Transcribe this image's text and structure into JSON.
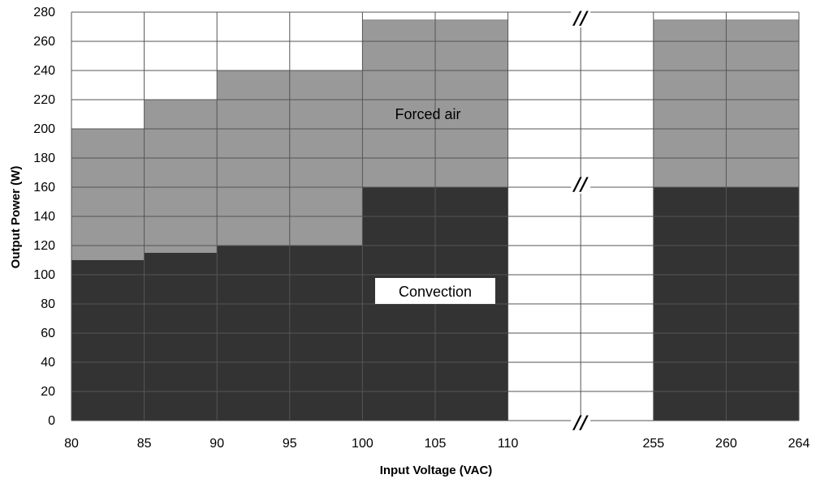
{
  "chart_data": {
    "type": "area",
    "xlabel": "Input Voltage (VAC)",
    "ylabel": "Output Power (W)",
    "ylim": [
      0,
      280
    ],
    "y_ticks": [
      "0",
      "20",
      "40",
      "60",
      "80",
      "100",
      "120",
      "140",
      "160",
      "180",
      "200",
      "220",
      "240",
      "260",
      "280"
    ],
    "x_ticks": [
      "80",
      "85",
      "90",
      "95",
      "100",
      "105",
      "110",
      "255",
      "260",
      "264"
    ],
    "axis_break": {
      "between": [
        "110",
        "255"
      ],
      "marker": "//"
    },
    "grid": true,
    "colors": {
      "convection": "#333333",
      "forced_air": "#999999",
      "grid": "#555555"
    },
    "series": [
      {
        "name": "Convection",
        "segments": [
          {
            "x0": 80,
            "x1": 85,
            "value": 110
          },
          {
            "x0": 85,
            "x1": 90,
            "value": 115
          },
          {
            "x0": 90,
            "x1": 100,
            "value": 120
          },
          {
            "x0": 100,
            "x1": 110,
            "value": 160
          },
          {
            "x0": 255,
            "x1": 264,
            "value": 160
          }
        ]
      },
      {
        "name": "Forced air",
        "segments": [
          {
            "x0": 80,
            "x1": 85,
            "value": 200
          },
          {
            "x0": 85,
            "x1": 90,
            "value": 220
          },
          {
            "x0": 90,
            "x1": 100,
            "value": 240
          },
          {
            "x0": 100,
            "x1": 110,
            "value": 275
          },
          {
            "x0": 255,
            "x1": 264,
            "value": 275
          }
        ]
      }
    ],
    "annotations": {
      "forced_air": "Forced air",
      "convection": "Convection"
    }
  }
}
